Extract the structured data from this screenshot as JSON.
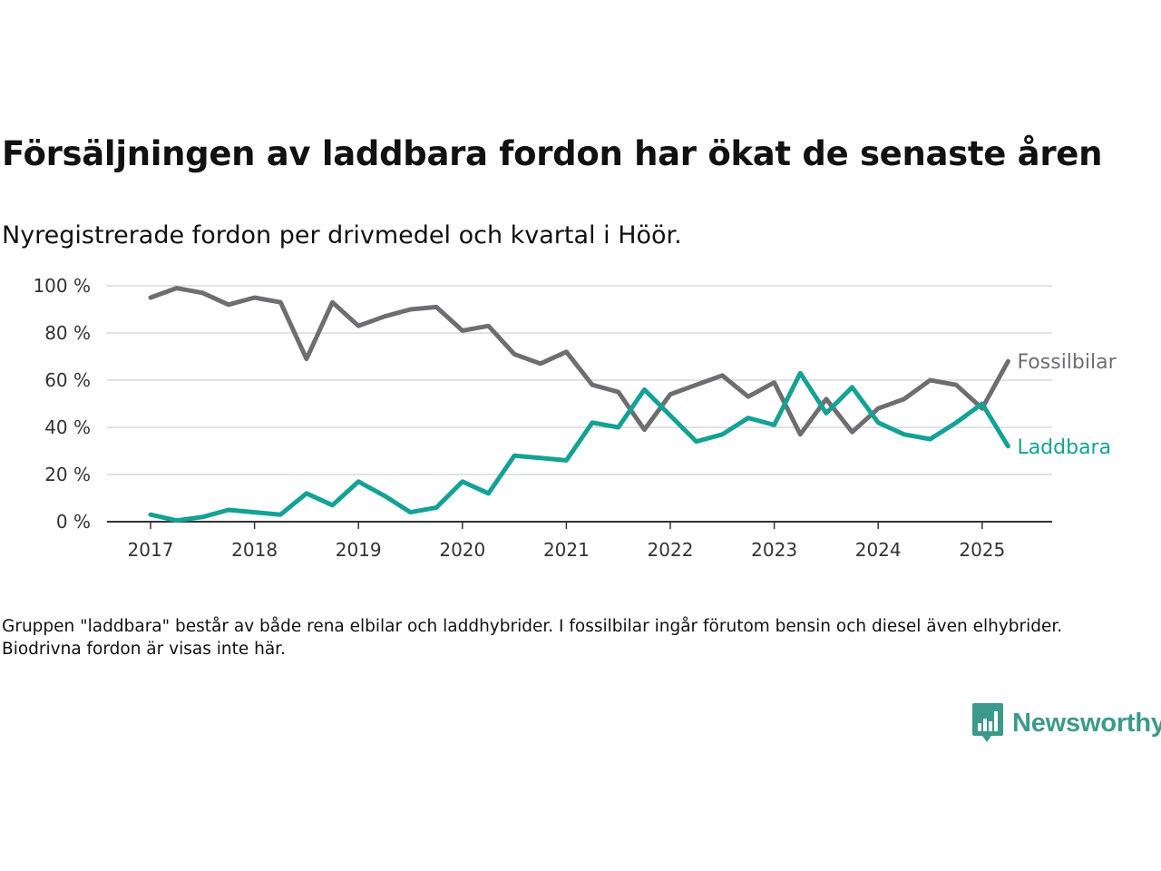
{
  "title": "Försäljningen av laddbara fordon har ökat de senaste åren",
  "subtitle": "Nyregistrerade fordon per drivmedel och kvartal i Höör.",
  "note": "Gruppen \"laddbara\" består av både rena elbilar och laddhybrider. I fossilbilar ingår förutom bensin och diesel även elhybrider. Biodrivna fordon är visas inte här.",
  "brand": {
    "name": "Newsworthy",
    "color": "#3b9a8a",
    "icon": "bar-chart-speech-bubble-icon"
  },
  "chart_data": {
    "type": "line",
    "x_unit": "quarter",
    "x": [
      "2017Q1",
      "2017Q2",
      "2017Q3",
      "2017Q4",
      "2018Q1",
      "2018Q2",
      "2018Q3",
      "2018Q4",
      "2019Q1",
      "2019Q2",
      "2019Q3",
      "2019Q4",
      "2020Q1",
      "2020Q2",
      "2020Q3",
      "2020Q4",
      "2021Q1",
      "2021Q2",
      "2021Q3",
      "2021Q4",
      "2022Q1",
      "2022Q2",
      "2022Q3",
      "2022Q4",
      "2023Q1",
      "2023Q2",
      "2023Q3",
      "2023Q4",
      "2024Q1",
      "2024Q2",
      "2024Q3",
      "2024Q4",
      "2025Q1",
      "2025Q2"
    ],
    "series": [
      {
        "name": "Fossilbilar",
        "color": "#6e6d72",
        "values": [
          95,
          99,
          97,
          92,
          95,
          93,
          69,
          93,
          83,
          87,
          90,
          91,
          81,
          83,
          71,
          67,
          72,
          58,
          55,
          39,
          54,
          58,
          62,
          53,
          59,
          37,
          52,
          38,
          48,
          52,
          60,
          58,
          48,
          68
        ]
      },
      {
        "name": "Laddbara",
        "color": "#13a295",
        "values": [
          3,
          0.5,
          2,
          5,
          4,
          3,
          12,
          7,
          17,
          11,
          4,
          6,
          17,
          12,
          28,
          27,
          26,
          42,
          40,
          56,
          45,
          34,
          37,
          44,
          41,
          63,
          46,
          57,
          42,
          37,
          35,
          42,
          50,
          32
        ]
      }
    ],
    "y_ticks": [
      "0 %",
      "20 %",
      "40 %",
      "60 %",
      "80 %",
      "100 %"
    ],
    "y_tick_values": [
      0,
      20,
      40,
      60,
      80,
      100
    ],
    "x_ticks": [
      "2017",
      "2018",
      "2019",
      "2020",
      "2021",
      "2022",
      "2023",
      "2024",
      "2025"
    ],
    "ylim": [
      0,
      100
    ],
    "grid": true,
    "legend": "direct labels at line ends"
  }
}
